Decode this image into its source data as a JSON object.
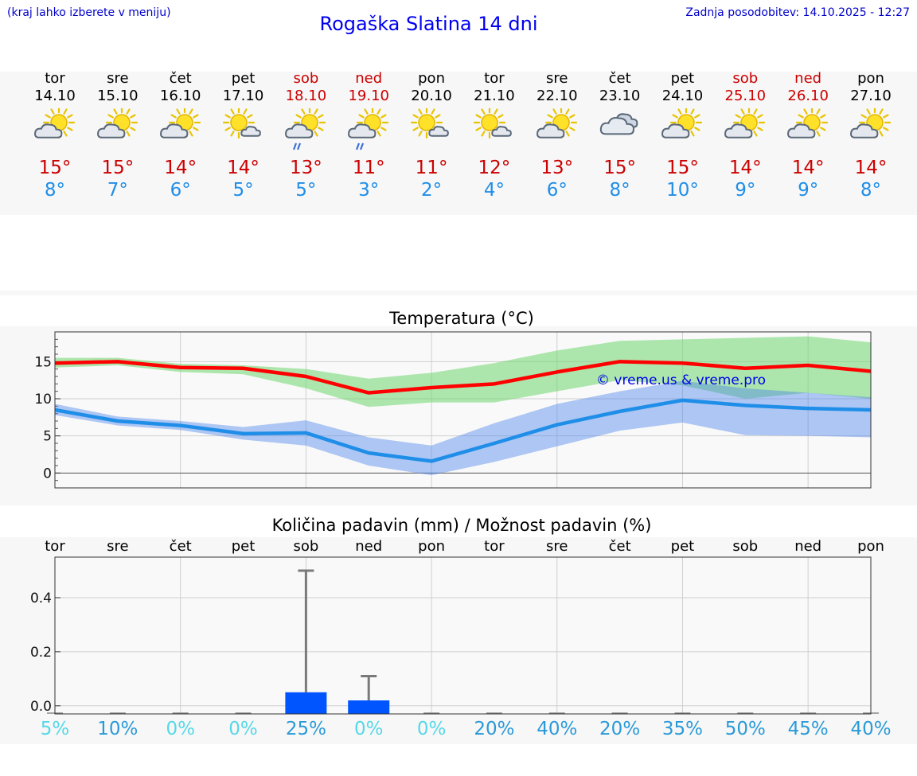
{
  "header": {
    "hint": "(kraj lahko izberete v meniju)",
    "title": "Rogaška Slatina 14 dni",
    "updated": "Zadnja posodobitev: 14.10.2025 - 12:27"
  },
  "colors": {
    "accent": "#0000ee",
    "max_temp": "#cc0000",
    "min_temp": "#1f8ee8",
    "precip_bar": "#0055ff",
    "pct_low": "#55d8e8",
    "pct_high": "#2a9ad8"
  },
  "days": [
    {
      "name": "tor",
      "date": "14.10",
      "icon": "sun-cloud-icon",
      "max": "15°",
      "min": "8°",
      "weekend": false
    },
    {
      "name": "sre",
      "date": "15.10",
      "icon": "sun-cloud-icon",
      "max": "15°",
      "min": "7°",
      "weekend": false
    },
    {
      "name": "čet",
      "date": "16.10",
      "icon": "sun-cloud-icon",
      "max": "14°",
      "min": "6°",
      "weekend": false
    },
    {
      "name": "pet",
      "date": "17.10",
      "icon": "sun-small-cloud-icon",
      "max": "14°",
      "min": "5°",
      "weekend": false
    },
    {
      "name": "sob",
      "date": "18.10",
      "icon": "sun-cloud-rain-icon",
      "max": "13°",
      "min": "5°",
      "weekend": true
    },
    {
      "name": "ned",
      "date": "19.10",
      "icon": "sun-cloud-rain-icon",
      "max": "11°",
      "min": "3°",
      "weekend": true
    },
    {
      "name": "pon",
      "date": "20.10",
      "icon": "sun-small-cloud-icon",
      "max": "11°",
      "min": "2°",
      "weekend": false
    },
    {
      "name": "tor",
      "date": "21.10",
      "icon": "sun-small-cloud-icon",
      "max": "12°",
      "min": "4°",
      "weekend": false
    },
    {
      "name": "sre",
      "date": "22.10",
      "icon": "sun-cloud-icon",
      "max": "13°",
      "min": "6°",
      "weekend": false
    },
    {
      "name": "čet",
      "date": "23.10",
      "icon": "cloudy-icon",
      "max": "15°",
      "min": "8°",
      "weekend": false
    },
    {
      "name": "pet",
      "date": "24.10",
      "icon": "sun-cloud-icon",
      "max": "15°",
      "min": "10°",
      "weekend": false
    },
    {
      "name": "sob",
      "date": "25.10",
      "icon": "sun-cloud-icon",
      "max": "14°",
      "min": "9°",
      "weekend": true
    },
    {
      "name": "ned",
      "date": "26.10",
      "icon": "sun-cloud-icon",
      "max": "14°",
      "min": "9°",
      "weekend": true
    },
    {
      "name": "pon",
      "date": "27.10",
      "icon": "sun-cloud-icon",
      "max": "14°",
      "min": "8°",
      "weekend": false
    }
  ],
  "watermark": "© vreme.us & vreme.pro",
  "chart_data": [
    {
      "type": "line",
      "title": "Temperatura (°C)",
      "xlabel": "",
      "ylabel": "",
      "x": [
        0,
        1,
        2,
        3,
        4,
        5,
        6,
        7,
        8,
        9,
        10,
        11,
        12,
        13
      ],
      "ylim": [
        -2,
        19
      ],
      "yticks": [
        0,
        5,
        10,
        15
      ],
      "grid": true,
      "series": [
        {
          "name": "max",
          "color": "#ff0000",
          "values": [
            14.8,
            15.0,
            14.2,
            14.1,
            13.0,
            10.8,
            11.5,
            12.0,
            13.6,
            15.0,
            14.8,
            14.1,
            14.5,
            13.7
          ],
          "band_low": [
            14.2,
            14.5,
            13.6,
            13.3,
            11.4,
            8.9,
            9.5,
            9.5,
            11.0,
            12.5,
            11.8,
            10.0,
            10.8,
            10.0
          ],
          "band_high": [
            15.5,
            15.5,
            14.7,
            14.5,
            14.0,
            12.7,
            13.5,
            14.8,
            16.5,
            17.8,
            18.0,
            18.2,
            18.4,
            17.6
          ]
        },
        {
          "name": "min",
          "color": "#1f8ee8",
          "values": [
            8.5,
            7.0,
            6.4,
            5.3,
            5.4,
            2.7,
            1.6,
            4.0,
            6.5,
            8.3,
            9.8,
            9.1,
            8.7,
            8.5
          ],
          "band_low": [
            7.8,
            6.4,
            5.8,
            4.5,
            3.7,
            1.0,
            -0.3,
            1.5,
            3.6,
            5.7,
            6.8,
            5.1,
            5.0,
            4.8
          ],
          "band_high": [
            9.3,
            7.6,
            7.0,
            6.2,
            7.1,
            4.8,
            3.7,
            6.7,
            9.3,
            11.0,
            12.4,
            11.4,
            10.8,
            10.2
          ]
        }
      ]
    },
    {
      "type": "bar",
      "title": "Količina padavin (mm) / Možnost padavin (%)",
      "categories": [
        "tor",
        "sre",
        "čet",
        "pet",
        "sob",
        "ned",
        "pon",
        "tor",
        "sre",
        "čet",
        "pet",
        "sob",
        "ned",
        "pon"
      ],
      "ylim": [
        -0.03,
        0.55
      ],
      "yticks": [
        0.0,
        0.2,
        0.4
      ],
      "ytick_labels": [
        "0.0",
        "0.2",
        "0.4"
      ],
      "values": [
        0,
        0,
        0,
        0,
        0.05,
        0.02,
        0,
        0,
        0,
        0,
        0,
        0,
        0,
        0
      ],
      "error_high": [
        0,
        0,
        0,
        0,
        0.5,
        0.11,
        0,
        0,
        0,
        0,
        0,
        0,
        0,
        0
      ],
      "probability_pct": [
        "5%",
        "10%",
        "0%",
        "0%",
        "25%",
        "0%",
        "0%",
        "20%",
        "40%",
        "20%",
        "35%",
        "50%",
        "45%",
        "40%"
      ],
      "probability_values": [
        5,
        10,
        0,
        0,
        25,
        0,
        0,
        20,
        40,
        20,
        35,
        50,
        45,
        40
      ]
    }
  ]
}
